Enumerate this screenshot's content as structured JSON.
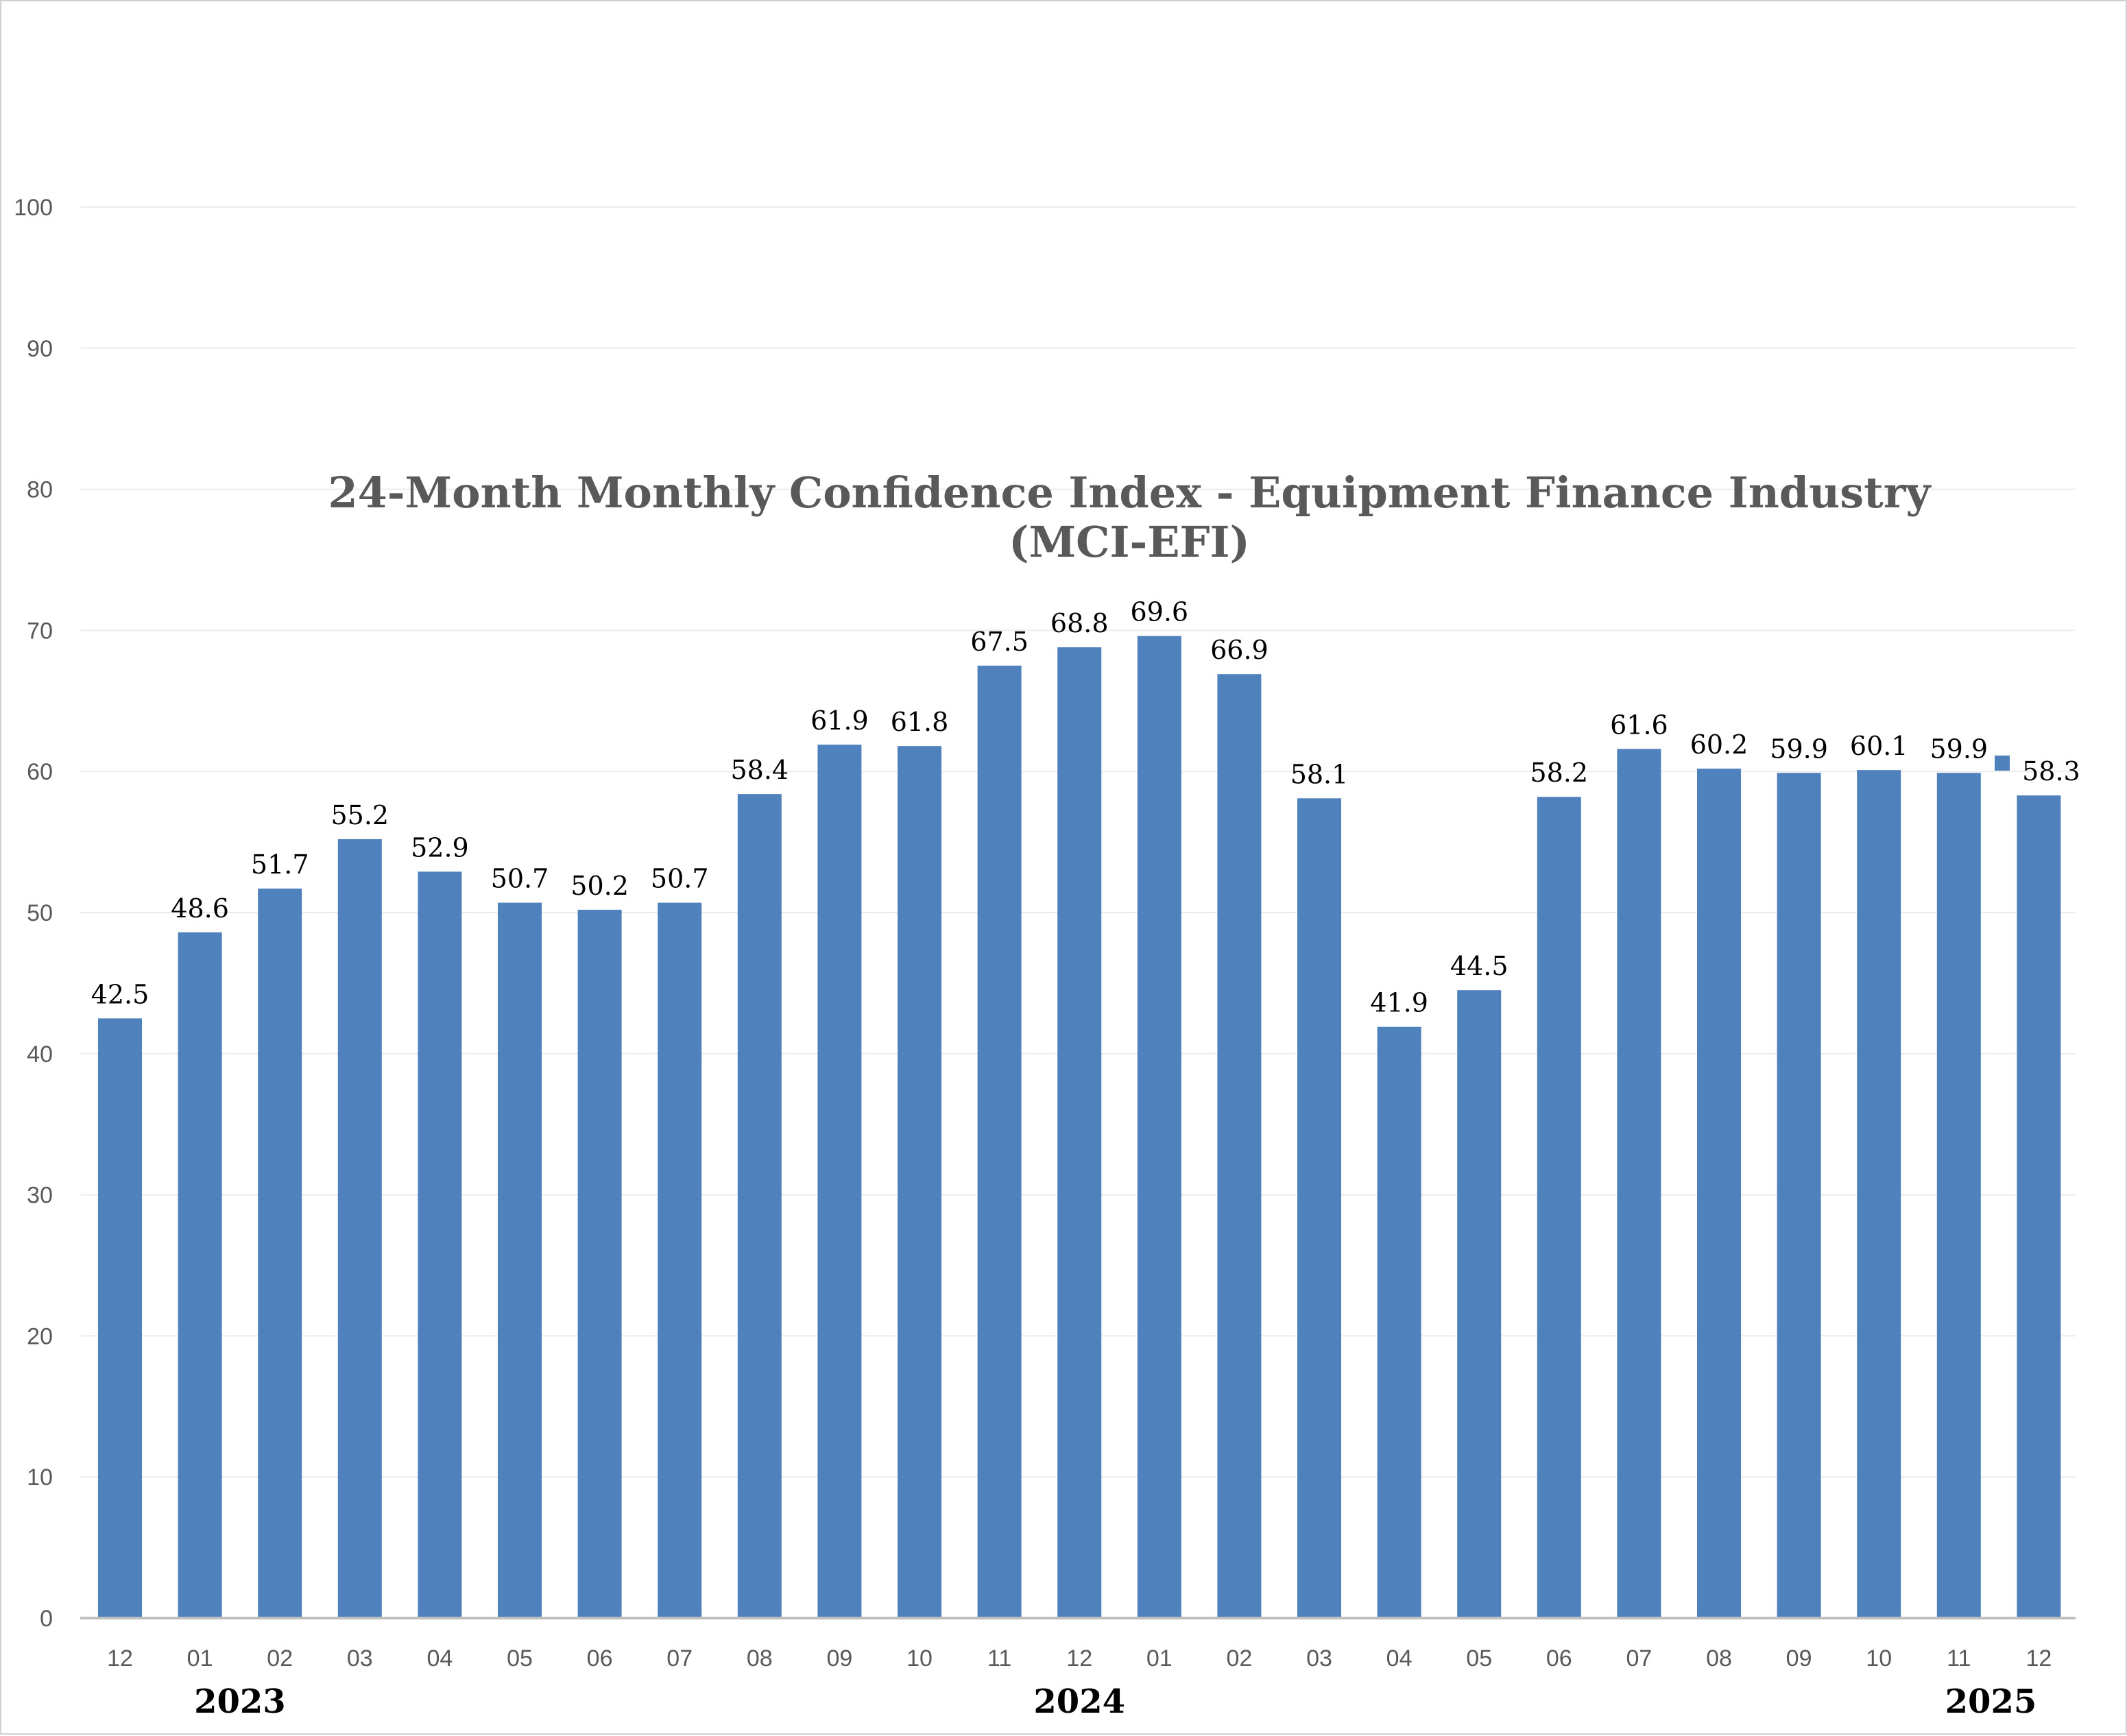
{
  "chart_data": {
    "type": "bar",
    "title_line1": "24-Month Monthly Confidence Index - Equipment Finance Industry",
    "title_line2": "(MCI-EFI)",
    "categories": [
      "12",
      "01",
      "02",
      "03",
      "04",
      "05",
      "06",
      "07",
      "08",
      "09",
      "10",
      "11",
      "12",
      "01",
      "02",
      "03",
      "04",
      "05",
      "06",
      "07",
      "08",
      "09",
      "10",
      "11",
      "12"
    ],
    "values": [
      42.5,
      48.6,
      51.7,
      55.2,
      52.9,
      50.7,
      50.2,
      50.7,
      58.4,
      61.9,
      61.8,
      67.5,
      68.8,
      69.6,
      66.9,
      58.1,
      41.9,
      44.5,
      58.2,
      61.6,
      60.2,
      59.9,
      60.1,
      59.9,
      58.3
    ],
    "data_labels": [
      "42.5",
      "48.6",
      "51.7",
      "55.2",
      "52.9",
      "50.7",
      "50.2",
      "50.7",
      "58.4",
      "61.9",
      "61.8",
      "67.5",
      "68.8",
      "69.6",
      "66.9",
      "58.1",
      "41.9",
      "44.5",
      "58.2",
      "61.6",
      "60.2",
      "59.9",
      "60.1",
      "59.9",
      "58.3"
    ],
    "year_groups": [
      {
        "label": "2023",
        "center_index": 1.5
      },
      {
        "label": "2024",
        "center_index": 12
      },
      {
        "label": "2025",
        "center_index": 23.4
      }
    ],
    "ylim": [
      0,
      100
    ],
    "yticks": [
      0,
      10,
      20,
      30,
      40,
      50,
      60,
      70,
      80,
      90,
      100
    ],
    "ytick_labels": [
      "0",
      "10",
      "20",
      "30",
      "40",
      "50",
      "60",
      "70",
      "80",
      "90",
      "100"
    ],
    "grid": true,
    "bar_color": "#4f81bd",
    "legend_marker_color": "#4f81bd",
    "xlabel": "",
    "ylabel": ""
  }
}
